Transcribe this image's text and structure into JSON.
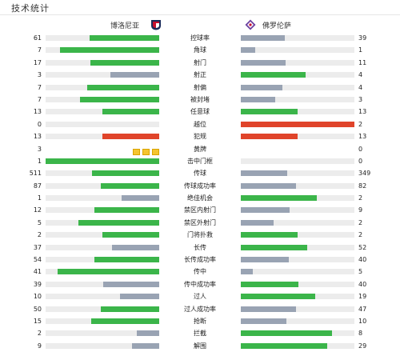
{
  "header": {
    "title": "技术统计"
  },
  "teams": {
    "home": {
      "name": "博洛尼亚",
      "badge_icon": "bologna-crest-icon"
    },
    "away": {
      "name": "佛罗伦萨",
      "badge_icon": "fiorentina-crest-icon"
    }
  },
  "colors": {
    "better": "#3bb54a",
    "worse": "#99a3b3",
    "red": "#e0442a",
    "yellow": "#f4c430",
    "track": "#ececec"
  },
  "stats": [
    {
      "label": "控球率",
      "home": "61",
      "away": "39",
      "home_fill": 0.61,
      "away_fill": 0.39,
      "home_color": "#3bb54a",
      "away_color": "#99a3b3"
    },
    {
      "label": "角球",
      "home": "7",
      "away": "1",
      "home_fill": 0.875,
      "away_fill": 0.125,
      "home_color": "#3bb54a",
      "away_color": "#99a3b3"
    },
    {
      "label": "射门",
      "home": "17",
      "away": "11",
      "home_fill": 0.607,
      "away_fill": 0.393,
      "home_color": "#3bb54a",
      "away_color": "#99a3b3"
    },
    {
      "label": "射正",
      "home": "3",
      "away": "4",
      "home_fill": 0.429,
      "away_fill": 0.571,
      "home_color": "#99a3b3",
      "away_color": "#3bb54a"
    },
    {
      "label": "射偏",
      "home": "7",
      "away": "4",
      "home_fill": 0.636,
      "away_fill": 0.364,
      "home_color": "#3bb54a",
      "away_color": "#99a3b3"
    },
    {
      "label": "被封堵",
      "home": "7",
      "away": "3",
      "home_fill": 0.7,
      "away_fill": 0.3,
      "home_color": "#3bb54a",
      "away_color": "#99a3b3"
    },
    {
      "label": "任意球",
      "home": "13",
      "away": "13",
      "home_fill": 0.5,
      "away_fill": 0.5,
      "home_color": "#3bb54a",
      "away_color": "#3bb54a"
    },
    {
      "label": "越位",
      "home": "0",
      "away": "2",
      "home_fill": 0,
      "away_fill": 1,
      "home_color": "#e0442a",
      "away_color": "#e0442a"
    },
    {
      "label": "犯规",
      "home": "13",
      "away": "13",
      "home_fill": 0.5,
      "away_fill": 0.5,
      "home_color": "#e0442a",
      "away_color": "#e0442a"
    },
    {
      "label": "黄牌",
      "home": "3",
      "away": "0",
      "home_fill": 0,
      "away_fill": 0,
      "home_color": "#f4c430",
      "away_color": "#f4c430",
      "home_cards": 3,
      "away_cards": 0
    },
    {
      "label": "击中门框",
      "home": "1",
      "away": "0",
      "home_fill": 1,
      "away_fill": 0,
      "home_color": "#3bb54a",
      "away_color": "#99a3b3"
    },
    {
      "label": "传球",
      "home": "511",
      "away": "349",
      "home_fill": 0.594,
      "away_fill": 0.406,
      "home_color": "#3bb54a",
      "away_color": "#99a3b3"
    },
    {
      "label": "传球成功率",
      "home": "87",
      "away": "82",
      "home_fill": 0.515,
      "away_fill": 0.485,
      "home_color": "#3bb54a",
      "away_color": "#99a3b3"
    },
    {
      "label": "绝佳机会",
      "home": "1",
      "away": "2",
      "home_fill": 0.333,
      "away_fill": 0.667,
      "home_color": "#99a3b3",
      "away_color": "#3bb54a"
    },
    {
      "label": "禁区内射门",
      "home": "12",
      "away": "9",
      "home_fill": 0.571,
      "away_fill": 0.429,
      "home_color": "#3bb54a",
      "away_color": "#99a3b3"
    },
    {
      "label": "禁区外射门",
      "home": "5",
      "away": "2",
      "home_fill": 0.714,
      "away_fill": 0.286,
      "home_color": "#3bb54a",
      "away_color": "#99a3b3"
    },
    {
      "label": "门将扑救",
      "home": "2",
      "away": "2",
      "home_fill": 0.5,
      "away_fill": 0.5,
      "home_color": "#3bb54a",
      "away_color": "#3bb54a"
    },
    {
      "label": "长传",
      "home": "37",
      "away": "52",
      "home_fill": 0.416,
      "away_fill": 0.584,
      "home_color": "#99a3b3",
      "away_color": "#3bb54a"
    },
    {
      "label": "长传成功率",
      "home": "54",
      "away": "40",
      "home_fill": 0.574,
      "away_fill": 0.426,
      "home_color": "#3bb54a",
      "away_color": "#99a3b3"
    },
    {
      "label": "传中",
      "home": "41",
      "away": "5",
      "home_fill": 0.891,
      "away_fill": 0.109,
      "home_color": "#3bb54a",
      "away_color": "#99a3b3"
    },
    {
      "label": "传中成功率",
      "home": "39",
      "away": "40",
      "home_fill": 0.494,
      "away_fill": 0.506,
      "home_color": "#99a3b3",
      "away_color": "#3bb54a"
    },
    {
      "label": "过人",
      "home": "10",
      "away": "19",
      "home_fill": 0.345,
      "away_fill": 0.655,
      "home_color": "#99a3b3",
      "away_color": "#3bb54a"
    },
    {
      "label": "过人成功率",
      "home": "50",
      "away": "47",
      "home_fill": 0.515,
      "away_fill": 0.485,
      "home_color": "#3bb54a",
      "away_color": "#99a3b3"
    },
    {
      "label": "抢断",
      "home": "15",
      "away": "10",
      "home_fill": 0.6,
      "away_fill": 0.4,
      "home_color": "#3bb54a",
      "away_color": "#99a3b3"
    },
    {
      "label": "拦截",
      "home": "2",
      "away": "8",
      "home_fill": 0.2,
      "away_fill": 0.8,
      "home_color": "#99a3b3",
      "away_color": "#3bb54a"
    },
    {
      "label": "解围",
      "home": "9",
      "away": "29",
      "home_fill": 0.237,
      "away_fill": 0.763,
      "home_color": "#99a3b3",
      "away_color": "#3bb54a"
    }
  ]
}
